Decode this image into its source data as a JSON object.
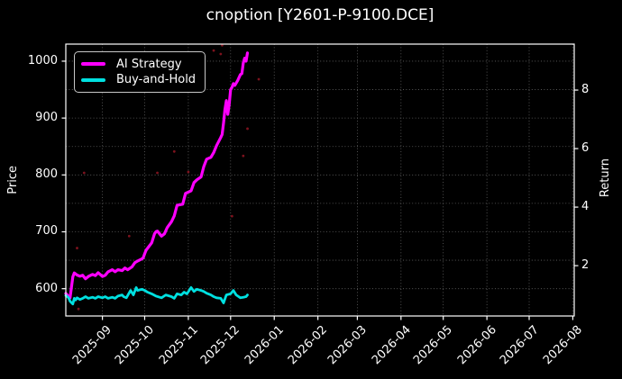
{
  "chart_data": {
    "type": "line",
    "title": "cnoption [Y2601-P-9100.DCE]",
    "background": "#000000",
    "text_color": "#ffffff",
    "grid": "on",
    "legend_position": "upper-left",
    "x_axis": {
      "range": [
        "2025-08-06",
        "2026-08-02"
      ],
      "ticks": [
        "2025-09",
        "2025-10",
        "2025-11",
        "2025-12",
        "2026-01",
        "2026-02",
        "2026-03",
        "2026-04",
        "2026-05",
        "2026-06",
        "2026-07",
        "2026-08"
      ],
      "tick_dates": [
        "2025-09-01",
        "2025-10-01",
        "2025-11-01",
        "2025-12-01",
        "2026-01-01",
        "2026-02-01",
        "2026-03-01",
        "2026-04-01",
        "2026-05-01",
        "2026-06-01",
        "2026-07-01",
        "2026-08-01"
      ]
    },
    "left_axis": {
      "label": "Price",
      "ticks": [
        600,
        700,
        800,
        900,
        1000
      ],
      "gridlines": [
        600,
        650,
        700,
        750,
        800,
        850,
        900,
        950,
        1000
      ],
      "range": [
        552,
        1030
      ]
    },
    "right_axis": {
      "label": "Return",
      "ticks": [
        2,
        4,
        6,
        8
      ],
      "range": [
        0.28,
        9.57
      ]
    },
    "series": [
      {
        "name": "AI Strategy",
        "color": "#ff00ff",
        "axis": "right",
        "width": 3.2,
        "points": [
          [
            "2025-08-06",
            1.05
          ],
          [
            "2025-08-07",
            1.0
          ],
          [
            "2025-08-08",
            0.92
          ],
          [
            "2025-08-09",
            0.9
          ],
          [
            "2025-08-11",
            1.62
          ],
          [
            "2025-08-12",
            1.75
          ],
          [
            "2025-08-14",
            1.68
          ],
          [
            "2025-08-16",
            1.64
          ],
          [
            "2025-08-18",
            1.67
          ],
          [
            "2025-08-20",
            1.55
          ],
          [
            "2025-08-22",
            1.63
          ],
          [
            "2025-08-25",
            1.7
          ],
          [
            "2025-08-27",
            1.66
          ],
          [
            "2025-08-29",
            1.76
          ],
          [
            "2025-09-01",
            1.63
          ],
          [
            "2025-09-03",
            1.67
          ],
          [
            "2025-09-05",
            1.79
          ],
          [
            "2025-09-08",
            1.86
          ],
          [
            "2025-09-10",
            1.79
          ],
          [
            "2025-09-12",
            1.86
          ],
          [
            "2025-09-15",
            1.83
          ],
          [
            "2025-09-17",
            1.92
          ],
          [
            "2025-09-19",
            1.86
          ],
          [
            "2025-09-22",
            1.96
          ],
          [
            "2025-09-24",
            2.1
          ],
          [
            "2025-09-26",
            2.16
          ],
          [
            "2025-09-29",
            2.23
          ],
          [
            "2025-09-30",
            2.27
          ],
          [
            "2025-10-01",
            2.41
          ],
          [
            "2025-10-02",
            2.53
          ],
          [
            "2025-10-06",
            2.78
          ],
          [
            "2025-10-08",
            3.09
          ],
          [
            "2025-10-09",
            3.16
          ],
          [
            "2025-10-10",
            3.18
          ],
          [
            "2025-10-13",
            3.01
          ],
          [
            "2025-10-15",
            3.09
          ],
          [
            "2025-10-17",
            3.3
          ],
          [
            "2025-10-20",
            3.5
          ],
          [
            "2025-10-22",
            3.7
          ],
          [
            "2025-10-24",
            4.06
          ],
          [
            "2025-10-28",
            4.1
          ],
          [
            "2025-10-30",
            4.47
          ],
          [
            "2025-11-03",
            4.56
          ],
          [
            "2025-11-05",
            4.84
          ],
          [
            "2025-11-07",
            4.93
          ],
          [
            "2025-11-10",
            5.03
          ],
          [
            "2025-11-12",
            5.39
          ],
          [
            "2025-11-14",
            5.64
          ],
          [
            "2025-11-17",
            5.7
          ],
          [
            "2025-11-19",
            5.86
          ],
          [
            "2025-11-21",
            6.1
          ],
          [
            "2025-11-24",
            6.38
          ],
          [
            "2025-11-25",
            6.48
          ],
          [
            "2025-11-26",
            6.88
          ],
          [
            "2025-11-27",
            7.33
          ],
          [
            "2025-11-28",
            7.64
          ],
          [
            "2025-11-29",
            7.17
          ],
          [
            "2025-11-30",
            7.5
          ],
          [
            "2025-12-01",
            8.01
          ],
          [
            "2025-12-02",
            8.1
          ],
          [
            "2025-12-03",
            8.22
          ],
          [
            "2025-12-04",
            8.16
          ],
          [
            "2025-12-06",
            8.32
          ],
          [
            "2025-12-08",
            8.53
          ],
          [
            "2025-12-09",
            8.56
          ],
          [
            "2025-12-10",
            8.93
          ],
          [
            "2025-12-11",
            9.09
          ],
          [
            "2025-12-12",
            8.99
          ],
          [
            "2025-12-13",
            9.27
          ]
        ]
      },
      {
        "name": "Buy-and-Hold",
        "color": "#00e0e0",
        "axis": "left",
        "width": 2.8,
        "points": [
          [
            "2025-08-06",
            588
          ],
          [
            "2025-08-07",
            586
          ],
          [
            "2025-08-08",
            584
          ],
          [
            "2025-08-09",
            578
          ],
          [
            "2025-08-11",
            573
          ],
          [
            "2025-08-12",
            583
          ],
          [
            "2025-08-13",
            580
          ],
          [
            "2025-08-14",
            584
          ],
          [
            "2025-08-16",
            581
          ],
          [
            "2025-08-18",
            583
          ],
          [
            "2025-08-20",
            586
          ],
          [
            "2025-08-22",
            583
          ],
          [
            "2025-08-25",
            585
          ],
          [
            "2025-08-27",
            583
          ],
          [
            "2025-08-29",
            586
          ],
          [
            "2025-09-01",
            584
          ],
          [
            "2025-09-03",
            586
          ],
          [
            "2025-09-05",
            583
          ],
          [
            "2025-09-08",
            585
          ],
          [
            "2025-09-10",
            583
          ],
          [
            "2025-09-12",
            587
          ],
          [
            "2025-09-15",
            589
          ],
          [
            "2025-09-16",
            586
          ],
          [
            "2025-09-18",
            584
          ],
          [
            "2025-09-21",
            597
          ],
          [
            "2025-09-23",
            589
          ],
          [
            "2025-09-25",
            602
          ],
          [
            "2025-09-26",
            597
          ],
          [
            "2025-09-29",
            599
          ],
          [
            "2025-10-01",
            597
          ],
          [
            "2025-10-03",
            594
          ],
          [
            "2025-10-06",
            591
          ],
          [
            "2025-10-09",
            587
          ],
          [
            "2025-10-13",
            584
          ],
          [
            "2025-10-16",
            589
          ],
          [
            "2025-10-20",
            586
          ],
          [
            "2025-10-22",
            583
          ],
          [
            "2025-10-24",
            591
          ],
          [
            "2025-10-27",
            589
          ],
          [
            "2025-10-29",
            594
          ],
          [
            "2025-10-31",
            591
          ],
          [
            "2025-11-03",
            602
          ],
          [
            "2025-11-05",
            595
          ],
          [
            "2025-11-07",
            599
          ],
          [
            "2025-11-10",
            597
          ],
          [
            "2025-11-12",
            595
          ],
          [
            "2025-11-14",
            592
          ],
          [
            "2025-11-17",
            589
          ],
          [
            "2025-11-19",
            586
          ],
          [
            "2025-11-21",
            584
          ],
          [
            "2025-11-24",
            583
          ],
          [
            "2025-11-26",
            575
          ],
          [
            "2025-11-28",
            589
          ],
          [
            "2025-12-01",
            591
          ],
          [
            "2025-12-03",
            597
          ],
          [
            "2025-12-05",
            589
          ],
          [
            "2025-12-08",
            584
          ],
          [
            "2025-12-10",
            585
          ],
          [
            "2025-12-12",
            586
          ],
          [
            "2025-12-13",
            589
          ]
        ]
      }
    ],
    "scatter": {
      "name": "trade-markers",
      "color": "#8b1420",
      "axis": "right",
      "points": [
        [
          "2025-11-19",
          9.35
        ],
        [
          "2025-11-25",
          9.53
        ],
        [
          "2025-11-24",
          9.23
        ],
        [
          "2025-11-01",
          5.2
        ],
        [
          "2025-10-10",
          5.17
        ],
        [
          "2025-08-19",
          5.17
        ],
        [
          "2025-09-20",
          3.01
        ],
        [
          "2025-12-13",
          6.68
        ],
        [
          "2025-12-10",
          5.75
        ],
        [
          "2025-08-15",
          0.52
        ],
        [
          "2025-12-02",
          3.69
        ],
        [
          "2025-10-22",
          5.9
        ],
        [
          "2025-12-21",
          8.37
        ],
        [
          "2025-08-14",
          2.6
        ]
      ]
    }
  }
}
